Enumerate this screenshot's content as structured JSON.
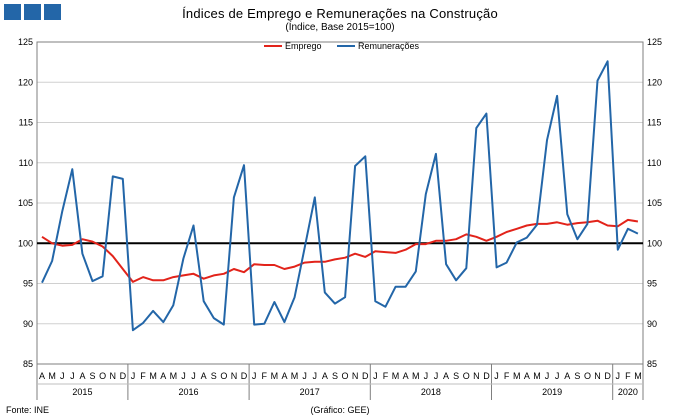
{
  "header": {
    "title": "Índices de Emprego e Remunerações na Construção",
    "subtitle": "(Índice, Base 2015=100)",
    "source": "Fonte: INE",
    "credit": "(Gráfico: GEE)",
    "logo_color": "#2366a8"
  },
  "chart_data": {
    "type": "line",
    "title": "Índices de Emprego e Remunerações na Construção",
    "subtitle": "(Índice, Base 2015=100)",
    "ylim": [
      85,
      125
    ],
    "y_ticks": [
      85,
      90,
      95,
      100,
      105,
      110,
      115,
      120,
      125
    ],
    "reference_line": 100,
    "grid": true,
    "legend": "top-center",
    "x_month_labels": [
      "A",
      "M",
      "J",
      "J",
      "A",
      "S",
      "O",
      "N",
      "D",
      "J",
      "F",
      "M",
      "A",
      "M",
      "J",
      "J",
      "A",
      "S",
      "O",
      "N",
      "D",
      "J",
      "F",
      "M",
      "A",
      "M",
      "J",
      "J",
      "A",
      "S",
      "O",
      "N",
      "D",
      "J",
      "F",
      "M",
      "A",
      "M",
      "J",
      "J",
      "A",
      "S",
      "O",
      "N",
      "D",
      "J",
      "F",
      "M",
      "A",
      "M",
      "J",
      "J",
      "A",
      "S",
      "O",
      "N",
      "D",
      "J",
      "F",
      "M"
    ],
    "year_groups": [
      {
        "label": "2015",
        "count": 9
      },
      {
        "label": "2016",
        "count": 12
      },
      {
        "label": "2017",
        "count": 12
      },
      {
        "label": "2018",
        "count": 12
      },
      {
        "label": "2019",
        "count": 12
      },
      {
        "label": "2020",
        "count": 3
      }
    ],
    "series": [
      {
        "name": "Emprego",
        "color": "#e2231a",
        "values": [
          100.8,
          100.0,
          99.7,
          99.8,
          100.5,
          100.2,
          99.6,
          98.4,
          96.8,
          95.2,
          95.8,
          95.4,
          95.4,
          95.8,
          96.0,
          96.2,
          95.6,
          96.0,
          96.2,
          96.8,
          96.4,
          97.4,
          97.3,
          97.3,
          96.8,
          97.1,
          97.6,
          97.7,
          97.7,
          98.0,
          98.2,
          98.7,
          98.3,
          99.0,
          98.9,
          98.8,
          99.2,
          99.9,
          99.9,
          100.3,
          100.3,
          100.5,
          101.1,
          100.8,
          100.3,
          100.8,
          101.4,
          101.8,
          102.2,
          102.4,
          102.4,
          102.6,
          102.3,
          102.5,
          102.6,
          102.8,
          102.2,
          102.1,
          102.9,
          102.7
        ]
      },
      {
        "name": "Remunerações",
        "color": "#2366a8",
        "values": [
          95.1,
          97.8,
          104.0,
          109.2,
          98.7,
          95.3,
          95.9,
          108.3,
          108.0,
          89.2,
          90.1,
          91.6,
          90.2,
          92.3,
          98.1,
          102.2,
          92.8,
          90.7,
          89.9,
          105.7,
          109.7,
          89.9,
          90.0,
          92.7,
          90.2,
          93.3,
          99.4,
          105.7,
          93.9,
          92.5,
          93.3,
          109.6,
          110.8,
          92.8,
          92.1,
          94.6,
          94.6,
          96.5,
          106.1,
          111.1,
          97.4,
          95.4,
          96.9,
          114.3,
          116.1,
          97.0,
          97.6,
          100.1,
          100.7,
          102.3,
          112.8,
          118.3,
          103.6,
          100.5,
          102.4,
          120.2,
          122.6,
          99.2,
          101.8,
          101.2
        ]
      }
    ]
  }
}
